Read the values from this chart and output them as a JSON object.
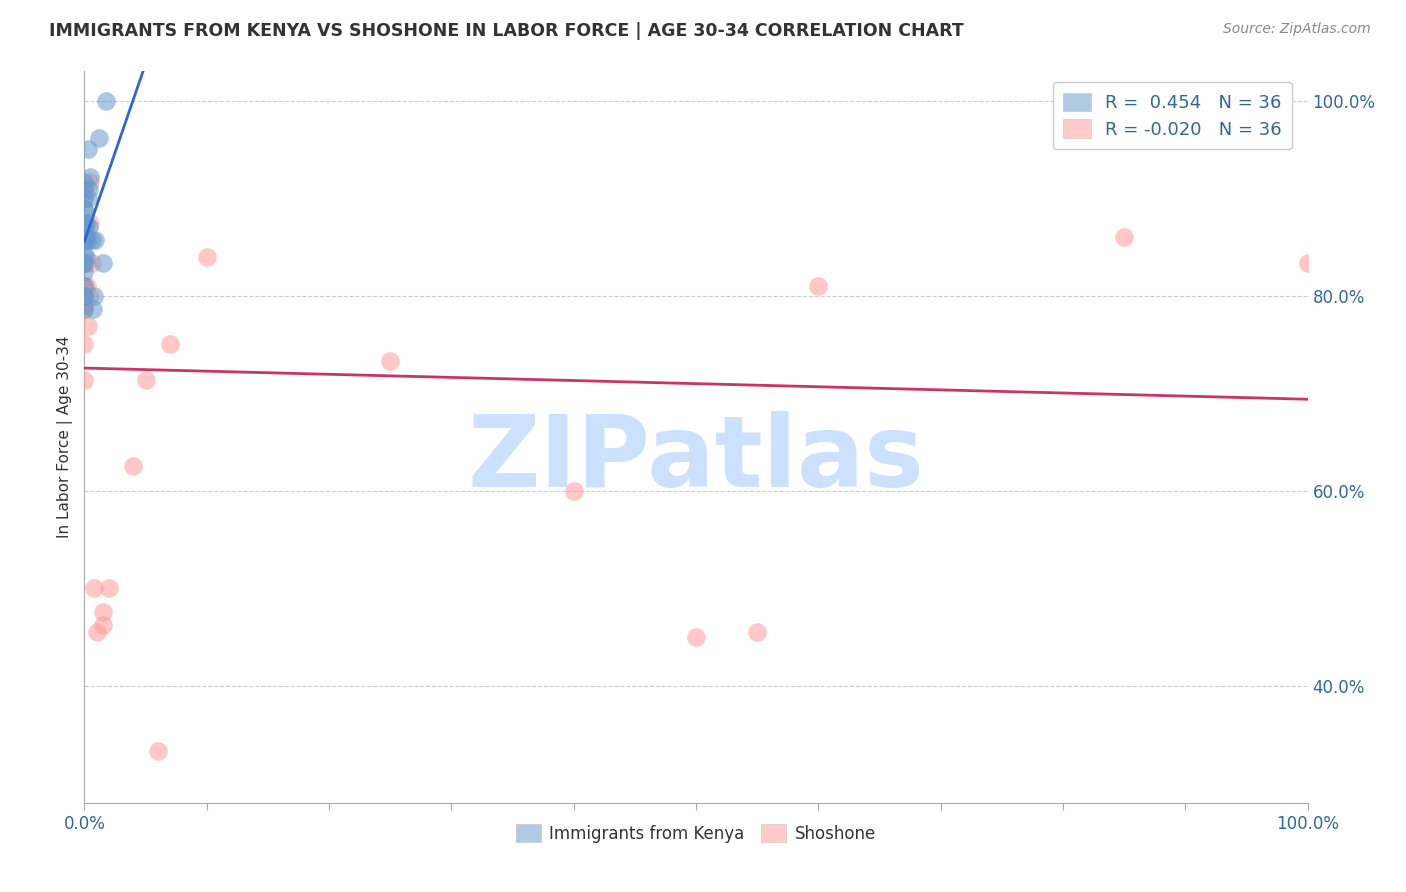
{
  "title": "IMMIGRANTS FROM KENYA VS SHOSHONE IN LABOR FORCE | AGE 30-34 CORRELATION CHART",
  "source": "Source: ZipAtlas.com",
  "ylabel": "In Labor Force | Age 30-34",
  "xlim": [
    0.0,
    1.0
  ],
  "ylim": [
    0.28,
    1.03
  ],
  "yticks": [
    0.4,
    0.6,
    0.8,
    1.0
  ],
  "ytick_labels": [
    "40.0%",
    "60.0%",
    "80.0%",
    "100.0%"
  ],
  "xticks": [
    0.0,
    0.1,
    0.2,
    0.3,
    0.4,
    0.5,
    0.6,
    0.7,
    0.8,
    0.9,
    1.0
  ],
  "kenya_color": "#6699cc",
  "shoshone_color": "#ff9999",
  "kenya_line_color": "#3366cc",
  "shoshone_line_color": "#cc3366",
  "kenya_r": 0.454,
  "kenya_n": 36,
  "shoshone_r": -0.02,
  "shoshone_n": 36,
  "kenya_points": [
    [
      0.0,
      0.857
    ],
    [
      0.0,
      0.889
    ],
    [
      0.0,
      0.917
    ],
    [
      0.0,
      0.909
    ],
    [
      0.0,
      0.875
    ],
    [
      0.0,
      0.833
    ],
    [
      0.0,
      0.87
    ],
    [
      0.0,
      0.862
    ],
    [
      0.0,
      0.857
    ],
    [
      0.0,
      0.8
    ],
    [
      0.0,
      0.786
    ],
    [
      0.0,
      0.81
    ],
    [
      0.0,
      0.833
    ],
    [
      0.0,
      0.857
    ],
    [
      0.0,
      0.87
    ],
    [
      0.0,
      0.9
    ],
    [
      0.0,
      0.824
    ],
    [
      0.0,
      0.842
    ],
    [
      0.0,
      0.8
    ],
    [
      0.0,
      0.889
    ],
    [
      0.001,
      0.84
    ],
    [
      0.001,
      0.862
    ],
    [
      0.001,
      0.875
    ],
    [
      0.003,
      0.95
    ],
    [
      0.003,
      0.9
    ],
    [
      0.003,
      0.857
    ],
    [
      0.004,
      0.909
    ],
    [
      0.004,
      0.87
    ],
    [
      0.005,
      0.922
    ],
    [
      0.006,
      0.857
    ],
    [
      0.007,
      0.786
    ],
    [
      0.008,
      0.8
    ],
    [
      0.009,
      0.857
    ],
    [
      0.012,
      0.962
    ],
    [
      0.015,
      0.833
    ],
    [
      0.018,
      1.0
    ]
  ],
  "shoshone_points": [
    [
      0.0,
      0.81
    ],
    [
      0.0,
      0.81
    ],
    [
      0.0,
      0.8
    ],
    [
      0.0,
      0.786
    ],
    [
      0.0,
      0.79
    ],
    [
      0.0,
      0.714
    ],
    [
      0.0,
      0.75
    ],
    [
      0.0,
      0.875
    ],
    [
      0.0,
      0.9
    ],
    [
      0.0,
      0.857
    ],
    [
      0.0,
      0.8
    ],
    [
      0.001,
      0.833
    ],
    [
      0.001,
      0.857
    ],
    [
      0.002,
      0.81
    ],
    [
      0.003,
      0.769
    ],
    [
      0.004,
      0.8
    ],
    [
      0.005,
      0.917
    ],
    [
      0.005,
      0.875
    ],
    [
      0.006,
      0.833
    ],
    [
      0.008,
      0.5
    ],
    [
      0.01,
      0.455
    ],
    [
      0.015,
      0.462
    ],
    [
      0.015,
      0.476
    ],
    [
      0.02,
      0.5
    ],
    [
      0.04,
      0.625
    ],
    [
      0.05,
      0.714
    ],
    [
      0.06,
      0.333
    ],
    [
      0.07,
      0.75
    ],
    [
      0.1,
      0.84
    ],
    [
      0.25,
      0.733
    ],
    [
      0.4,
      0.6
    ],
    [
      0.5,
      0.45
    ],
    [
      0.55,
      0.455
    ],
    [
      0.6,
      0.81
    ],
    [
      0.85,
      0.86
    ],
    [
      1.0,
      0.833
    ]
  ],
  "background_color": "#ffffff",
  "grid_color": "#cccccc",
  "title_color": "#333333",
  "axis_label_color": "#336699",
  "watermark_text": "ZIPatlas",
  "watermark_color": "#cce0ff"
}
